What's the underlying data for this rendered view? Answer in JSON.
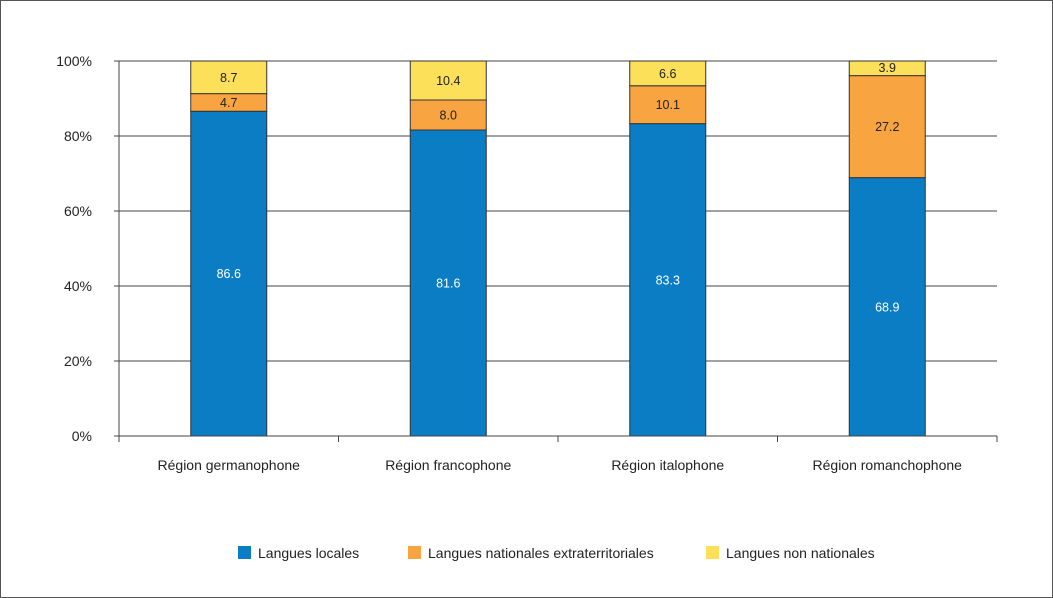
{
  "chart_data": {
    "type": "bar",
    "stacked": true,
    "percent_stacked": true,
    "categories": [
      "Région germanophone",
      "Région francophone",
      "Région italophone",
      "Région romanchophone"
    ],
    "series": [
      {
        "name": "Langues locales",
        "values": [
          86.6,
          81.6,
          83.3,
          68.9
        ],
        "color": "#0a7dc5"
      },
      {
        "name": "Langues nationales extraterritoriales",
        "values": [
          4.7,
          8.0,
          10.1,
          27.2
        ],
        "color": "#f7a441"
      },
      {
        "name": "Langues non nationales",
        "values": [
          8.7,
          10.4,
          6.6,
          3.9
        ],
        "color": "#fde05a"
      }
    ],
    "data_labels": [
      [
        "86.6",
        "81.6",
        "83.3",
        "68.9"
      ],
      [
        "4.7",
        "8.0",
        "10.1",
        "27.2"
      ],
      [
        "8.7",
        "10.4",
        "6.6",
        "3.9"
      ]
    ],
    "yticks": [
      "0%",
      "20%",
      "40%",
      "60%",
      "80%",
      "100%"
    ],
    "ylim": [
      0,
      100
    ],
    "grid": true,
    "legend_position": "bottom",
    "title": "",
    "xlabel": "",
    "ylabel": ""
  }
}
